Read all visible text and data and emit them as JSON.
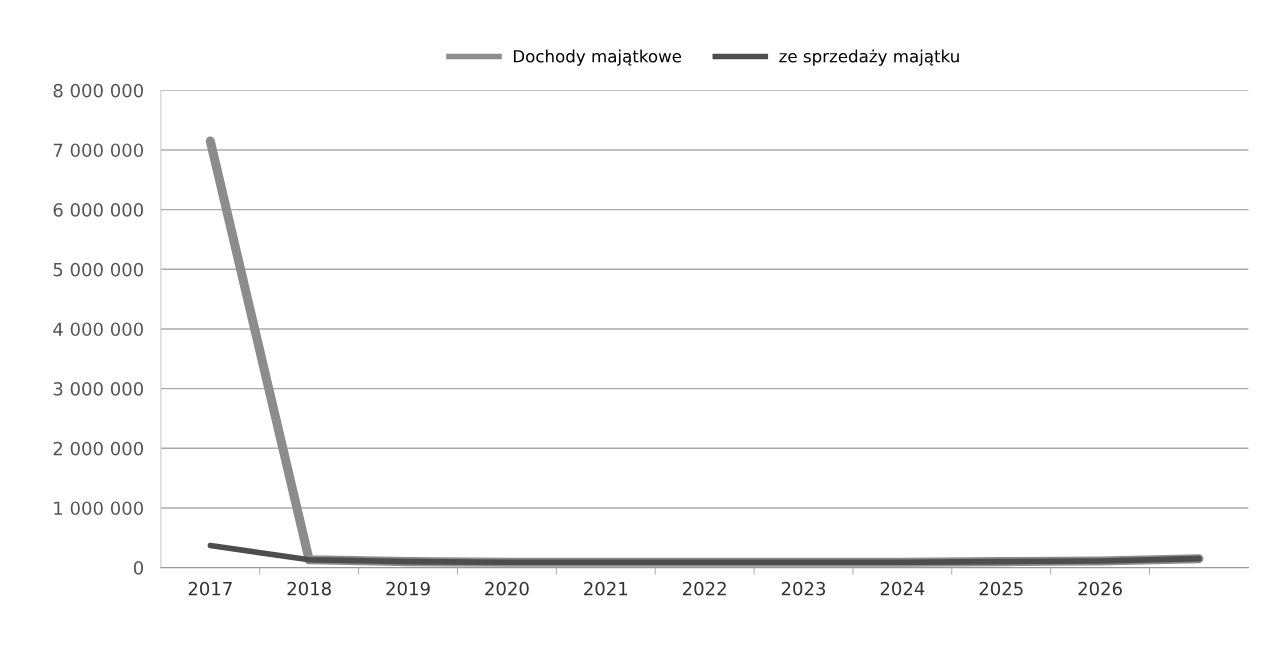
{
  "chart_data": {
    "type": "line",
    "categories": [
      "2017",
      "2018",
      "2019",
      "2020",
      "2021",
      "2022",
      "2023",
      "2024",
      "2025",
      "2026",
      null
    ],
    "series": [
      {
        "name": "Dochody majątkowe",
        "color": "#8c8c8c",
        "values": [
          7150000,
          130000,
          100000,
          90000,
          90000,
          90000,
          90000,
          90000,
          100000,
          110000,
          150000
        ]
      },
      {
        "name": "ze sprzedaży majątku",
        "color": "#4d4d4d",
        "values": [
          370000,
          130000,
          100000,
          90000,
          90000,
          90000,
          90000,
          90000,
          100000,
          110000,
          150000
        ]
      }
    ],
    "ylim": [
      0,
      8000000
    ],
    "yticks": [
      {
        "value": 0,
        "label": "0"
      },
      {
        "value": 1000000,
        "label": "1 000 000"
      },
      {
        "value": 2000000,
        "label": "2 000 000"
      },
      {
        "value": 3000000,
        "label": "3 000 000"
      },
      {
        "value": 4000000,
        "label": "4 000 000"
      },
      {
        "value": 5000000,
        "label": "5 000 000"
      },
      {
        "value": 6000000,
        "label": "6 000 000"
      },
      {
        "value": 7000000,
        "label": "7 000 000"
      },
      {
        "value": 8000000,
        "label": "8 000 000"
      }
    ],
    "grid": "y",
    "legend": "top",
    "marker": "none",
    "line_style": "solid"
  }
}
